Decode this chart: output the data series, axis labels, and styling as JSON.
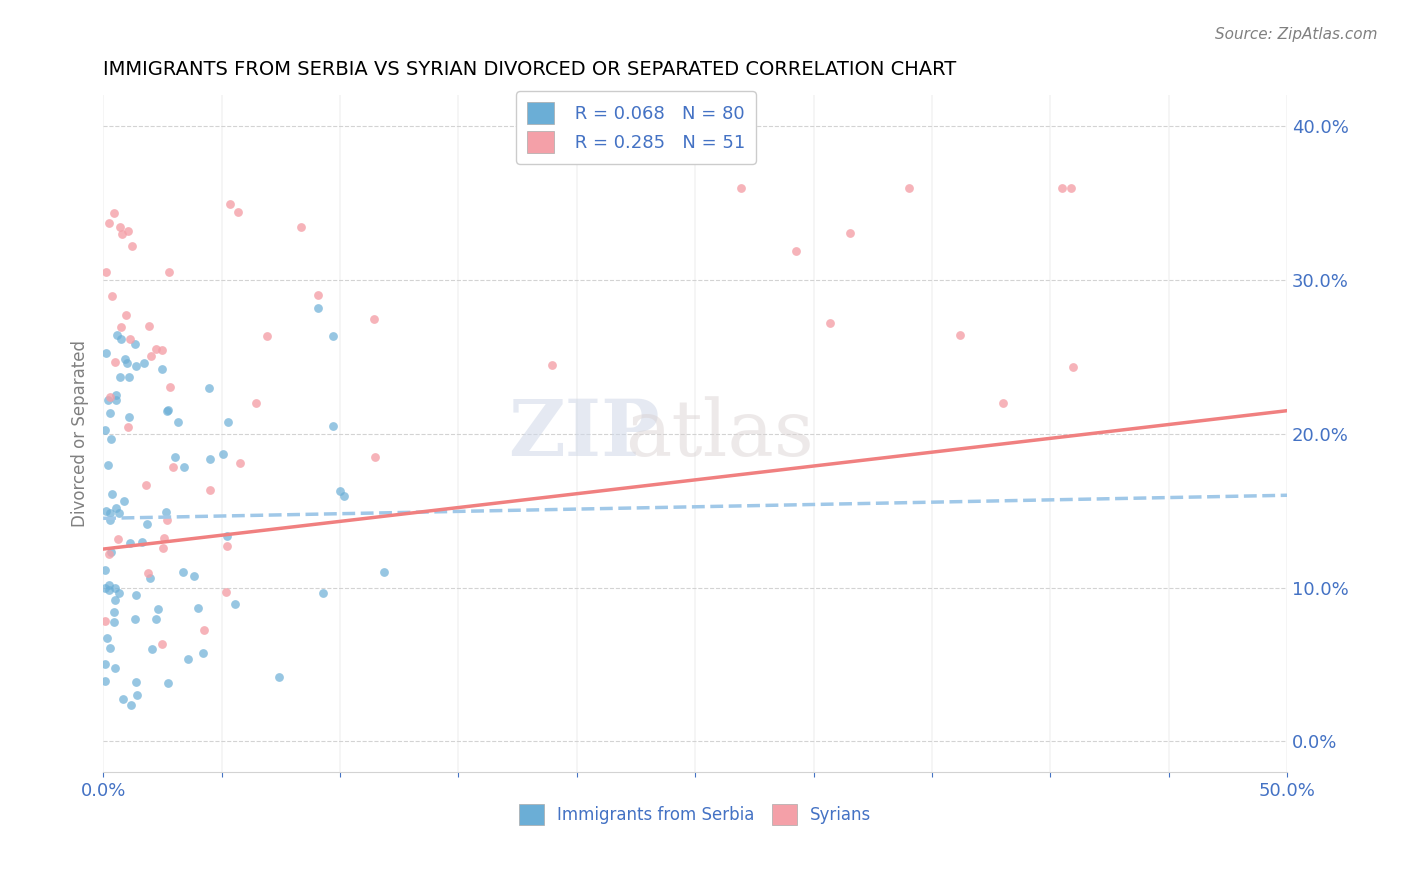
{
  "title": "IMMIGRANTS FROM SERBIA VS SYRIAN DIVORCED OR SEPARATED CORRELATION CHART",
  "source": "Source: ZipAtlas.com",
  "ylabel": "Divorced or Separated",
  "xlim": [
    0.0,
    0.5
  ],
  "ylim": [
    -0.02,
    0.42
  ],
  "legend_r1": "R = 0.068",
  "legend_n1": "N = 80",
  "legend_r2": "R = 0.285",
  "legend_n2": "N = 51",
  "color_serbia": "#6baed6",
  "color_syrian": "#f4a0a8",
  "trend_color_serbia": "#a0c8e8",
  "trend_color_syrian": "#f08080",
  "watermark_zip": "ZIP",
  "watermark_atlas": "atlas",
  "trend_serbia_slope": 0.03,
  "trend_serbia_intercept": 0.145,
  "trend_syrian_slope": 0.18,
  "trend_syrian_intercept": 0.125
}
